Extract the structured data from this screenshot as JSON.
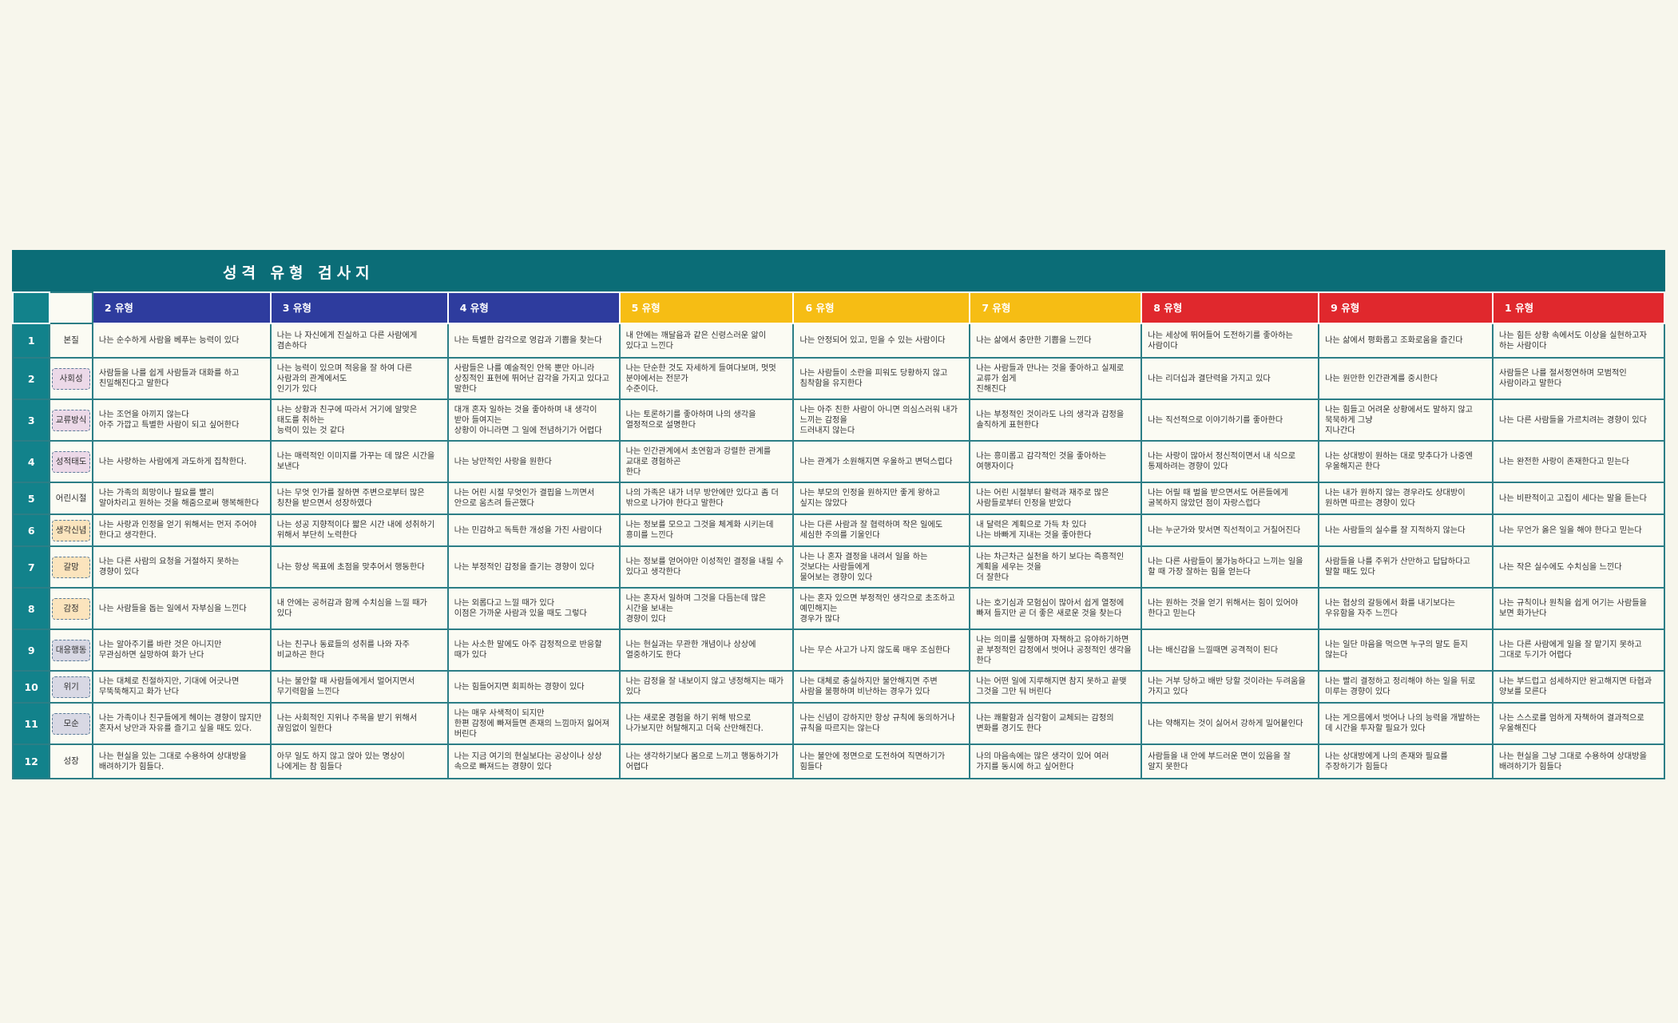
{
  "title": "성격 유형 검사지",
  "colors": {
    "teal": "#0b6d77",
    "blue": "#2e3c9e",
    "yellow": "#f6bd14",
    "red": "#e0282d"
  },
  "types": [
    "2 유형",
    "3 유형",
    "4 유형",
    "5 유형",
    "6 유형",
    "7 유형",
    "8 유형",
    "9 유형",
    "1 유형"
  ],
  "rows": [
    {
      "num": "1",
      "cat": "본질",
      "cells": [
        "나는 순수하게 사람을 베푸는 능력이 있다",
        "나는 나 자신에게 진실하고 다른 사람에게\n겸손하다",
        "나는 특별한 감각으로 영감과 기쁨을 찾는다",
        "내 안에는 깨달음과 같은 신령스러운 앎이\n있다고 느낀다",
        "나는 안정되어 있고, 믿을 수 있는 사람이다",
        "나는 삶에서 충만한 기쁨을 느낀다",
        "나는 세상에 뛰어들어 도전하기를 좋아하는\n사람이다",
        "나는 삶에서 평화롭고 조화로움을 즐긴다",
        "나는 힘든 상황 속에서도 이상을 실현하고자\n하는 사람이다"
      ]
    },
    {
      "num": "2",
      "cat": "사회성",
      "cells": [
        "사람들을 나를 쉽게 사람들과 대화를 하고\n친밀해진다고 말한다",
        "나는 능력이 있으며 적응을 잘 하여 다른\n사람과의 관계에서도\n인기가 있다",
        "사람들은 나를 예술적인 안목 뿐만 아니라\n상징적인 표현에 뛰어난 감각을 가지고 있다고\n말한다",
        "나는 단순한 것도 자세하게 들여다보며, 멋멋\n분야에서는 전문가\n수준이다.",
        "나는 사람들이 소란을 피워도 당황하지 않고\n침착함을 유지한다",
        "나는 사람들과 만나는 것을 좋아하고 실제로\n교류가 쉽게\n진해진다",
        "나는 리더십과 결단력을 가지고 있다",
        "나는 원만한 인간관계를 중시한다",
        "사람들은 나를 절서정연하며 모범적인\n사람이라고 말한다"
      ]
    },
    {
      "num": "3",
      "cat": "교류방식",
      "cells": [
        "나는 조언을 아끼지 않는다\n아주 가깝고 특별한 사람이 되고 싶어한다",
        "나는 상황과 친구에 따라서 거기에 알맞은\n태도를 취하는\n능력이 있는 것 같다",
        "대개 혼자 일하는 것을 좋아하며 내 생각이\n받아 들여지는\n상황이 아니라면 그 일에 전념하기가 어렵다",
        "나는 토론하기를 좋아하며 나의 생각을\n열정적으로 설명한다",
        "나는 아주 친한 사람이 아니면 의심스러워 내가\n느끼는 감정을\n드러내지 않는다",
        "나는 부정적인 것이라도 나의 생각과 감정을\n솔직하게 표현한다",
        "나는 직선적으로 이야기하기를 좋아한다",
        "나는 힘들고 어려운 상황에서도 말하지 않고\n묵묵하게 그냥\n지나간다",
        "나는 다른 사람들을 가르치려는 경향이 있다"
      ]
    },
    {
      "num": "4",
      "cat": "성적태도",
      "cells": [
        "나는 사랑하는 사람에게 과도하게 집착한다.",
        "나는 매력적인 이미지를 가꾸는 데 많은 시간을\n보낸다",
        "나는 낭만적인 사랑을 원한다",
        "나는 인간관계에서 초연함과 강렬한 관계를\n교대로 경험하곤\n한다",
        "나는 관계가 소원해지면 우울하고 변덕스럽다",
        "나는 흥미롭고 감각적인 것을 좋아하는\n여행자이다",
        "나는 사랑이 많아서 정신적이면서 내 식으로\n통제하려는 경향이 있다",
        "나는 상대방이 원하는 대로 맞추다가 나중엔\n우울해지곤 한다",
        "나는 완전한 사랑이 존재한다고 믿는다"
      ]
    },
    {
      "num": "5",
      "cat": "어린시절",
      "cells": [
        "나는 가족의 희망이나 필요를 빨리\n알아차리고 원하는 것을 해줌으로써 행복해한다",
        "나는 무엇 인가를 잘하면 주변으로부터 많은\n칭찬을 받으면서 성장하였다",
        "나는 어린 시절 무엇인가 결핍을 느끼면서\n안으로 움츠려 들곤했다",
        "나의 가족은 내가 너무 방안에만 있다고 좀 더\n밖으로 나가야 한다고 말한다",
        "나는 부모의 인정을 원하지만 좋게 왕하고\n싶지는 않았다",
        "나는 어린 시절부터 활력과 재주로 많은\n사람들로부터 인정을 받았다",
        "나는 어릴 때 벌을 받으면서도 어른들에게\n굴복하지 않았던 점이 자랑스럽다",
        "나는 내가 원하지 않는 경우라도 상대방이\n원하면 따르는 경향이 있다",
        "나는 비판적이고 고집이 세다는 말을 듣는다"
      ]
    },
    {
      "num": "6",
      "cat": "생각신념",
      "cells": [
        "나는 사랑과 인정을 얻기 위해서는 먼저 주어야\n한다고 생각한다.",
        "나는 성공 지향적이다 짧은 시간 내에 성취하기\n위해서 부단히 노력한다",
        "나는 민감하고 독특한 개성을 가진 사람이다",
        "나는 정보를 모으고 그것을 체계화 시키는데\n흥미를 느낀다",
        "나는 다른 사람과 잘 협력하며 작은 일에도\n세심한 주의를 기울인다",
        "내 달력은 계획으로 가득 차 있다\n나는 바빠게 지내는 것을 좋아한다",
        "나는 누군가와 맞서면 직선적이고 거칠어진다",
        "나는 사람들의 실수를 잘 지적하지 않는다",
        "나는 무언가 옳은 일을 해야 한다고 믿는다"
      ]
    },
    {
      "num": "7",
      "cat": "갈망",
      "cells": [
        "나는 다른 사람의 요청을 거절하지 못하는\n경향이 있다",
        "나는 항상 목표에 초점을 맞추어서 행동한다",
        "나는 부정적인 감정을 즐기는 경향이 있다",
        "나는 정보를 얻어야만 이성적인 결정을 내릴 수\n있다고 생각한다",
        "나는 나 혼자 결정을 내려서 일을 하는\n것보다는 사람들에게\n물어보는 경향이 있다",
        "나는 차근차근 실천을 하기 보다는 즉흥적인\n계획을 세우는 것을\n더 잘한다",
        "나는 다른 사람들이 불가능하다고 느끼는 일을\n할 때 가장 잘하는 힘을 얻는다",
        "사람들을 나를 주위가 산만하고 답답하다고\n말할 때도 있다",
        "나는 작은 실수에도 수치심을 느낀다"
      ]
    },
    {
      "num": "8",
      "cat": "감정",
      "cells": [
        "나는 사람들을 돕는 일에서 자부심을 느낀다",
        "내 안에는 공허감과 함께 수치심을 느낄 때가\n있다",
        "나는 외롭다고 느낄 때가 있다\n이점은 가까운 사람과 있을 때도 그렇다",
        "나는 혼자서 일하며 그것을 다듬는데 많은\n시간을 보내는\n경향이 있다",
        "나는 혼자 있으면 부정적인 생각으로 초조하고\n예민해지는\n경우가 많다",
        "나는 호기심과 모험심이 많아서 쉽게 열정에\n빠져 들지만 곧 더 좋은 새로운 것을 찾는다",
        "나는 원하는 것을 얻기 위해서는 힘이 있어야\n한다고 믿는다",
        "나는 협상의 갈등에서 화를 내기보다는\n우유함을 자주 느낀다",
        "나는 규칙이나 원칙을 쉽게 어기는 사람들을\n보면 화가난다"
      ]
    },
    {
      "num": "9",
      "cat": "대응행동",
      "cells": [
        "나는 알아주기를 바란 것은 아니지만\n무관심하면 실망하여 화가 난다",
        "나는 친구나 동료들의 성취를 나와 자주\n비교하곤 한다",
        "나는 사소한 말에도 아주 감정적으로 반응할\n때가 있다",
        "나는 현실과는 무관한 개념이나 상상에\n열중하기도 한다",
        "나는 무슨 사고가 나지 않도록 매우 조심한다",
        "나는 의미를 실행하며 자책하고 유야하기하면\n곧 부정적인 감정에서 벗어나 공정적인 생각을\n한다",
        "나는 배신감을 느낄때면 공격적이 된다",
        "나는 일단 마음을 먹으면 누구의 말도 듣지\n않는다",
        "나는 다른 사람에게 일을 잘 맡기지 못하고\n그대로 두기가 어렵다"
      ]
    },
    {
      "num": "10",
      "cat": "위기",
      "cells": [
        "나는 대체로 친절하지만, 기대에 어긋나면\n무뚝뚝해지고 화가 난다",
        "나는 불안할 때 사람들에게서 멀어지면서\n무기력함을 느낀다",
        "나는 힘들어지면 회피하는 경향이 있다",
        "나는 감정을 잘 내보이지 않고 냉정해지는 때가\n있다",
        "나는 대체로 충실하지만 불안해지면 주변\n사람을 불평하며 비난하는 경우가 있다",
        "나는 어떤 일에 지루해지면 참지 못하고 끝맺\n그것을 그만 둬 버린다",
        "나는 거부 당하고 배반 당할 것이라는 두려움을\n가지고 있다",
        "나는 빨리 결정하고 정리해야 하는 일을 뒤로\n미루는 경향이 있다",
        "나는 부드럽고 섬세하지만 완고해지면 타협과\n양보를 모른다"
      ]
    },
    {
      "num": "11",
      "cat": "모순",
      "cells": [
        "나는 가족이나 친구들에게 헤이는 경향이 많지만\n혼자서 낭만과 자유를 즐기고 싶을 때도 있다.",
        "나는 사회적인 지위나 주목을 받기 위해서\n끊임없이 일한다",
        "나는 매우 사색적이 되지만\n한편 감정에 빠져들면 존재의 느낌마저 잃어져\n버린다",
        "나는 새로운 경험을 하기 위해 밖으로\n나가보지만 허탈해지고 더욱 산만해진다.",
        "나는 신념이 강하지만 항상 규칙에 동의하거나\n규칙을 따르지는 않는다",
        "나는 쾌활함과 심각함이 교체되는 감정의\n변화를 경기도 한다",
        "나는 약해지는 것이 싫어서 강하게 밀어붙인다",
        "나는 게으름에서 벗어나 나의 능력을 개발하는\n데 시간을 투자할 필요가 있다",
        "나는 스스로를 엄하게 자책하여 결과적으로\n우울해진다"
      ]
    },
    {
      "num": "12",
      "cat": "성장",
      "cells": [
        "나는 현실을 있는 그대로 수용하여 상대방을\n배려하기가 힘들다.",
        "아무 일도 하지 않고 앉아 있는 명상이\n나에게는 참 힘들다",
        "나는 지금 여기의 현실보다는 공상이나 상상\n속으로 빠져드는 경향이 있다",
        "나는 생각하기보다 몸으로 느끼고 행동하기가\n어렵다",
        "나는 불안에 정면으로 도전하여 직면하기가\n힘들다",
        "나의 마음속에는 많은 생각이 있어 여러\n가지를 동시에 하고 싶어한다",
        "사람들을 내 안에 부드러운 면이 있음을 잘\n알지 못한다",
        "나는 상대방에게 나의 존재와 필요를\n주장하기가 힘들다",
        "나는 현실을 그냥 그대로 수용하여 상대방을\n배려하기가 힘들다"
      ]
    }
  ]
}
